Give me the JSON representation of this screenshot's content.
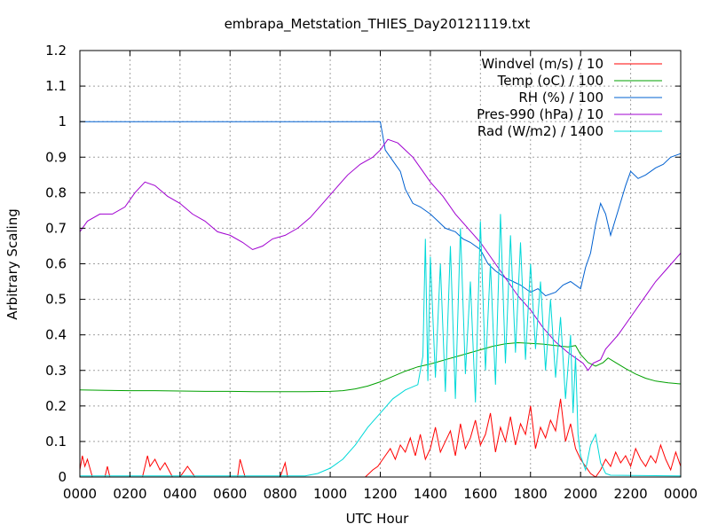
{
  "chart_data": {
    "type": "line",
    "title": "embrapa_Metstation_THIES_Day20121119.txt",
    "xlabel": "UTC Hour",
    "ylabel": "Arbitrary Scaling",
    "xlim": [
      0,
      24
    ],
    "ylim": [
      0,
      1.2
    ],
    "grid": true,
    "legend_position": "top-right",
    "x_ticks": [
      {
        "v": 0,
        "label": "0000"
      },
      {
        "v": 2,
        "label": "0200"
      },
      {
        "v": 4,
        "label": "0400"
      },
      {
        "v": 6,
        "label": "0600"
      },
      {
        "v": 8,
        "label": "0800"
      },
      {
        "v": 10,
        "label": "1000"
      },
      {
        "v": 12,
        "label": "1200"
      },
      {
        "v": 14,
        "label": "1400"
      },
      {
        "v": 16,
        "label": "1600"
      },
      {
        "v": 18,
        "label": "1800"
      },
      {
        "v": 20,
        "label": "2000"
      },
      {
        "v": 22,
        "label": "2200"
      },
      {
        "v": 24,
        "label": "0000"
      }
    ],
    "y_ticks": [
      {
        "v": 0,
        "label": "0"
      },
      {
        "v": 0.1,
        "label": "0.1"
      },
      {
        "v": 0.2,
        "label": "0.2"
      },
      {
        "v": 0.3,
        "label": "0.3"
      },
      {
        "v": 0.4,
        "label": "0.4"
      },
      {
        "v": 0.5,
        "label": "0.5"
      },
      {
        "v": 0.6,
        "label": "0.6"
      },
      {
        "v": 0.7,
        "label": "0.7"
      },
      {
        "v": 0.8,
        "label": "0.8"
      },
      {
        "v": 0.9,
        "label": "0.9"
      },
      {
        "v": 1.0,
        "label": "1"
      },
      {
        "v": 1.1,
        "label": "1.1"
      },
      {
        "v": 1.2,
        "label": "1.2"
      }
    ],
    "series": [
      {
        "name": "Windvel (m/s) / 10",
        "color": "#ff0000",
        "x": [
          0,
          0.1,
          0.2,
          0.3,
          0.5,
          0.7,
          1.0,
          1.1,
          1.2,
          1.5,
          1.8,
          2.0,
          2.5,
          2.7,
          2.8,
          3.0,
          3.2,
          3.4,
          3.7,
          4.0,
          4.3,
          4.6,
          5.0,
          5.5,
          6.3,
          6.4,
          6.6,
          7.0,
          7.5,
          8.0,
          8.2,
          8.3,
          8.5,
          9.0,
          9.5,
          10.0,
          10.5,
          11.0,
          11.4,
          11.7,
          11.9,
          12.0,
          12.2,
          12.4,
          12.6,
          12.8,
          13.0,
          13.2,
          13.4,
          13.6,
          13.8,
          14.0,
          14.2,
          14.4,
          14.6,
          14.8,
          15.0,
          15.2,
          15.4,
          15.6,
          15.8,
          16.0,
          16.2,
          16.4,
          16.6,
          16.8,
          17.0,
          17.2,
          17.4,
          17.6,
          17.8,
          18.0,
          18.2,
          18.4,
          18.6,
          18.8,
          19.0,
          19.2,
          19.4,
          19.6,
          19.8,
          20.0,
          20.2,
          20.4,
          20.6,
          20.8,
          21.0,
          21.2,
          21.4,
          21.6,
          21.8,
          22.0,
          22.2,
          22.4,
          22.6,
          22.8,
          23.0,
          23.2,
          23.4,
          23.6,
          23.8,
          24.0
        ],
        "y": [
          0.02,
          0.06,
          0.03,
          0.05,
          0.0,
          0.0,
          0.0,
          0.03,
          0.0,
          0.0,
          0.0,
          0.0,
          0.0,
          0.06,
          0.03,
          0.05,
          0.02,
          0.04,
          0.0,
          0.0,
          0.03,
          0.0,
          0.0,
          0.0,
          0.0,
          0.05,
          0.0,
          0.0,
          0.0,
          0.0,
          0.04,
          0.0,
          0.0,
          0.0,
          0.0,
          0.0,
          0.0,
          0.0,
          0.0,
          0.02,
          0.03,
          0.04,
          0.06,
          0.08,
          0.05,
          0.09,
          0.07,
          0.11,
          0.06,
          0.12,
          0.05,
          0.08,
          0.14,
          0.07,
          0.1,
          0.13,
          0.06,
          0.15,
          0.08,
          0.11,
          0.16,
          0.09,
          0.12,
          0.18,
          0.07,
          0.14,
          0.1,
          0.17,
          0.09,
          0.15,
          0.12,
          0.2,
          0.08,
          0.14,
          0.11,
          0.16,
          0.13,
          0.22,
          0.1,
          0.15,
          0.08,
          0.05,
          0.03,
          0.01,
          0.0,
          0.02,
          0.05,
          0.03,
          0.07,
          0.04,
          0.06,
          0.03,
          0.08,
          0.05,
          0.03,
          0.06,
          0.04,
          0.09,
          0.05,
          0.02,
          0.07,
          0.03
        ]
      },
      {
        "name": "Temp (oC) / 100",
        "color": "#00a000",
        "x": [
          0,
          1,
          2,
          3,
          4,
          5,
          6,
          7,
          8,
          9,
          10,
          10.5,
          11,
          11.5,
          12,
          12.5,
          13,
          13.5,
          14,
          14.5,
          15,
          15.5,
          16,
          16.5,
          17,
          17.5,
          18,
          18.5,
          19,
          19.5,
          19.8,
          20,
          20.3,
          20.6,
          20.9,
          21.1,
          21.4,
          21.8,
          22.2,
          22.6,
          23,
          23.5,
          24
        ],
        "y": [
          0.245,
          0.244,
          0.243,
          0.243,
          0.242,
          0.241,
          0.241,
          0.24,
          0.24,
          0.24,
          0.241,
          0.243,
          0.248,
          0.256,
          0.268,
          0.283,
          0.298,
          0.31,
          0.318,
          0.328,
          0.338,
          0.348,
          0.358,
          0.368,
          0.375,
          0.378,
          0.376,
          0.374,
          0.37,
          0.366,
          0.37,
          0.345,
          0.322,
          0.312,
          0.322,
          0.335,
          0.322,
          0.305,
          0.29,
          0.278,
          0.27,
          0.265,
          0.262
        ]
      },
      {
        "name": "RH (%) / 100",
        "color": "#0060d0",
        "x": [
          0,
          2,
          4,
          6,
          8,
          10,
          11,
          12,
          12.2,
          12.5,
          12.8,
          13.0,
          13.3,
          13.6,
          14.0,
          14.3,
          14.6,
          15.0,
          15.3,
          15.6,
          16.0,
          16.3,
          16.6,
          17.0,
          17.3,
          17.6,
          18.0,
          18.3,
          18.6,
          19.0,
          19.3,
          19.6,
          20.0,
          20.2,
          20.4,
          20.6,
          20.8,
          21.0,
          21.2,
          21.5,
          21.8,
          22.0,
          22.3,
          22.6,
          23.0,
          23.3,
          23.6,
          24.0
        ],
        "y": [
          1.0,
          1.0,
          1.0,
          1.0,
          1.0,
          1.0,
          1.0,
          1.0,
          0.92,
          0.89,
          0.86,
          0.81,
          0.77,
          0.76,
          0.74,
          0.72,
          0.7,
          0.69,
          0.67,
          0.66,
          0.64,
          0.6,
          0.58,
          0.56,
          0.55,
          0.54,
          0.52,
          0.53,
          0.51,
          0.52,
          0.54,
          0.55,
          0.53,
          0.59,
          0.63,
          0.71,
          0.77,
          0.74,
          0.68,
          0.75,
          0.82,
          0.86,
          0.84,
          0.85,
          0.87,
          0.88,
          0.9,
          0.91
        ]
      },
      {
        "name": "Pres-990 (hPa) / 10",
        "color": "#a000d0",
        "x": [
          0,
          0.3,
          0.8,
          1.3,
          1.8,
          2.2,
          2.6,
          3.0,
          3.5,
          4.0,
          4.5,
          5.0,
          5.5,
          6.0,
          6.5,
          6.9,
          7.3,
          7.7,
          8.2,
          8.7,
          9.2,
          9.7,
          10.2,
          10.7,
          11.2,
          11.7,
          12.0,
          12.3,
          12.7,
          13.0,
          13.3,
          13.7,
          14.0,
          14.5,
          15.0,
          15.5,
          16.0,
          16.5,
          17.0,
          17.5,
          18.0,
          18.5,
          19.0,
          19.5,
          19.9,
          20.1,
          20.3,
          20.5,
          20.8,
          21.0,
          21.5,
          22.0,
          22.5,
          23.0,
          23.5,
          24.0
        ],
        "y": [
          0.69,
          0.72,
          0.74,
          0.74,
          0.76,
          0.8,
          0.83,
          0.82,
          0.79,
          0.77,
          0.74,
          0.72,
          0.69,
          0.68,
          0.66,
          0.64,
          0.65,
          0.67,
          0.68,
          0.7,
          0.73,
          0.77,
          0.81,
          0.85,
          0.88,
          0.9,
          0.92,
          0.95,
          0.94,
          0.92,
          0.9,
          0.86,
          0.83,
          0.79,
          0.74,
          0.7,
          0.66,
          0.61,
          0.56,
          0.51,
          0.47,
          0.42,
          0.38,
          0.35,
          0.33,
          0.32,
          0.3,
          0.32,
          0.33,
          0.36,
          0.4,
          0.45,
          0.5,
          0.55,
          0.59,
          0.63
        ]
      },
      {
        "name": "Rad (W/m2) / 1400",
        "color": "#00d8d8",
        "x": [
          0,
          9.0,
          9.5,
          10.0,
          10.5,
          11.0,
          11.5,
          12.0,
          12.5,
          13.0,
          13.5,
          13.7,
          13.8,
          13.9,
          14.0,
          14.2,
          14.4,
          14.6,
          14.8,
          15.0,
          15.2,
          15.4,
          15.6,
          15.8,
          16.0,
          16.2,
          16.4,
          16.6,
          16.8,
          17.0,
          17.2,
          17.4,
          17.6,
          17.8,
          18.0,
          18.2,
          18.4,
          18.6,
          18.8,
          19.0,
          19.2,
          19.4,
          19.6,
          19.7,
          19.8,
          19.9,
          20.0,
          20.2,
          20.4,
          20.6,
          20.8,
          21.0,
          21.2,
          24.0
        ],
        "y": [
          0.003,
          0.003,
          0.01,
          0.025,
          0.05,
          0.09,
          0.14,
          0.18,
          0.22,
          0.245,
          0.26,
          0.34,
          0.67,
          0.27,
          0.62,
          0.28,
          0.6,
          0.24,
          0.65,
          0.22,
          0.7,
          0.29,
          0.55,
          0.21,
          0.72,
          0.3,
          0.6,
          0.26,
          0.74,
          0.32,
          0.68,
          0.35,
          0.66,
          0.33,
          0.6,
          0.36,
          0.55,
          0.3,
          0.5,
          0.28,
          0.45,
          0.22,
          0.4,
          0.18,
          0.34,
          0.12,
          0.06,
          0.02,
          0.09,
          0.12,
          0.04,
          0.01,
          0.005,
          0.003
        ]
      }
    ]
  }
}
